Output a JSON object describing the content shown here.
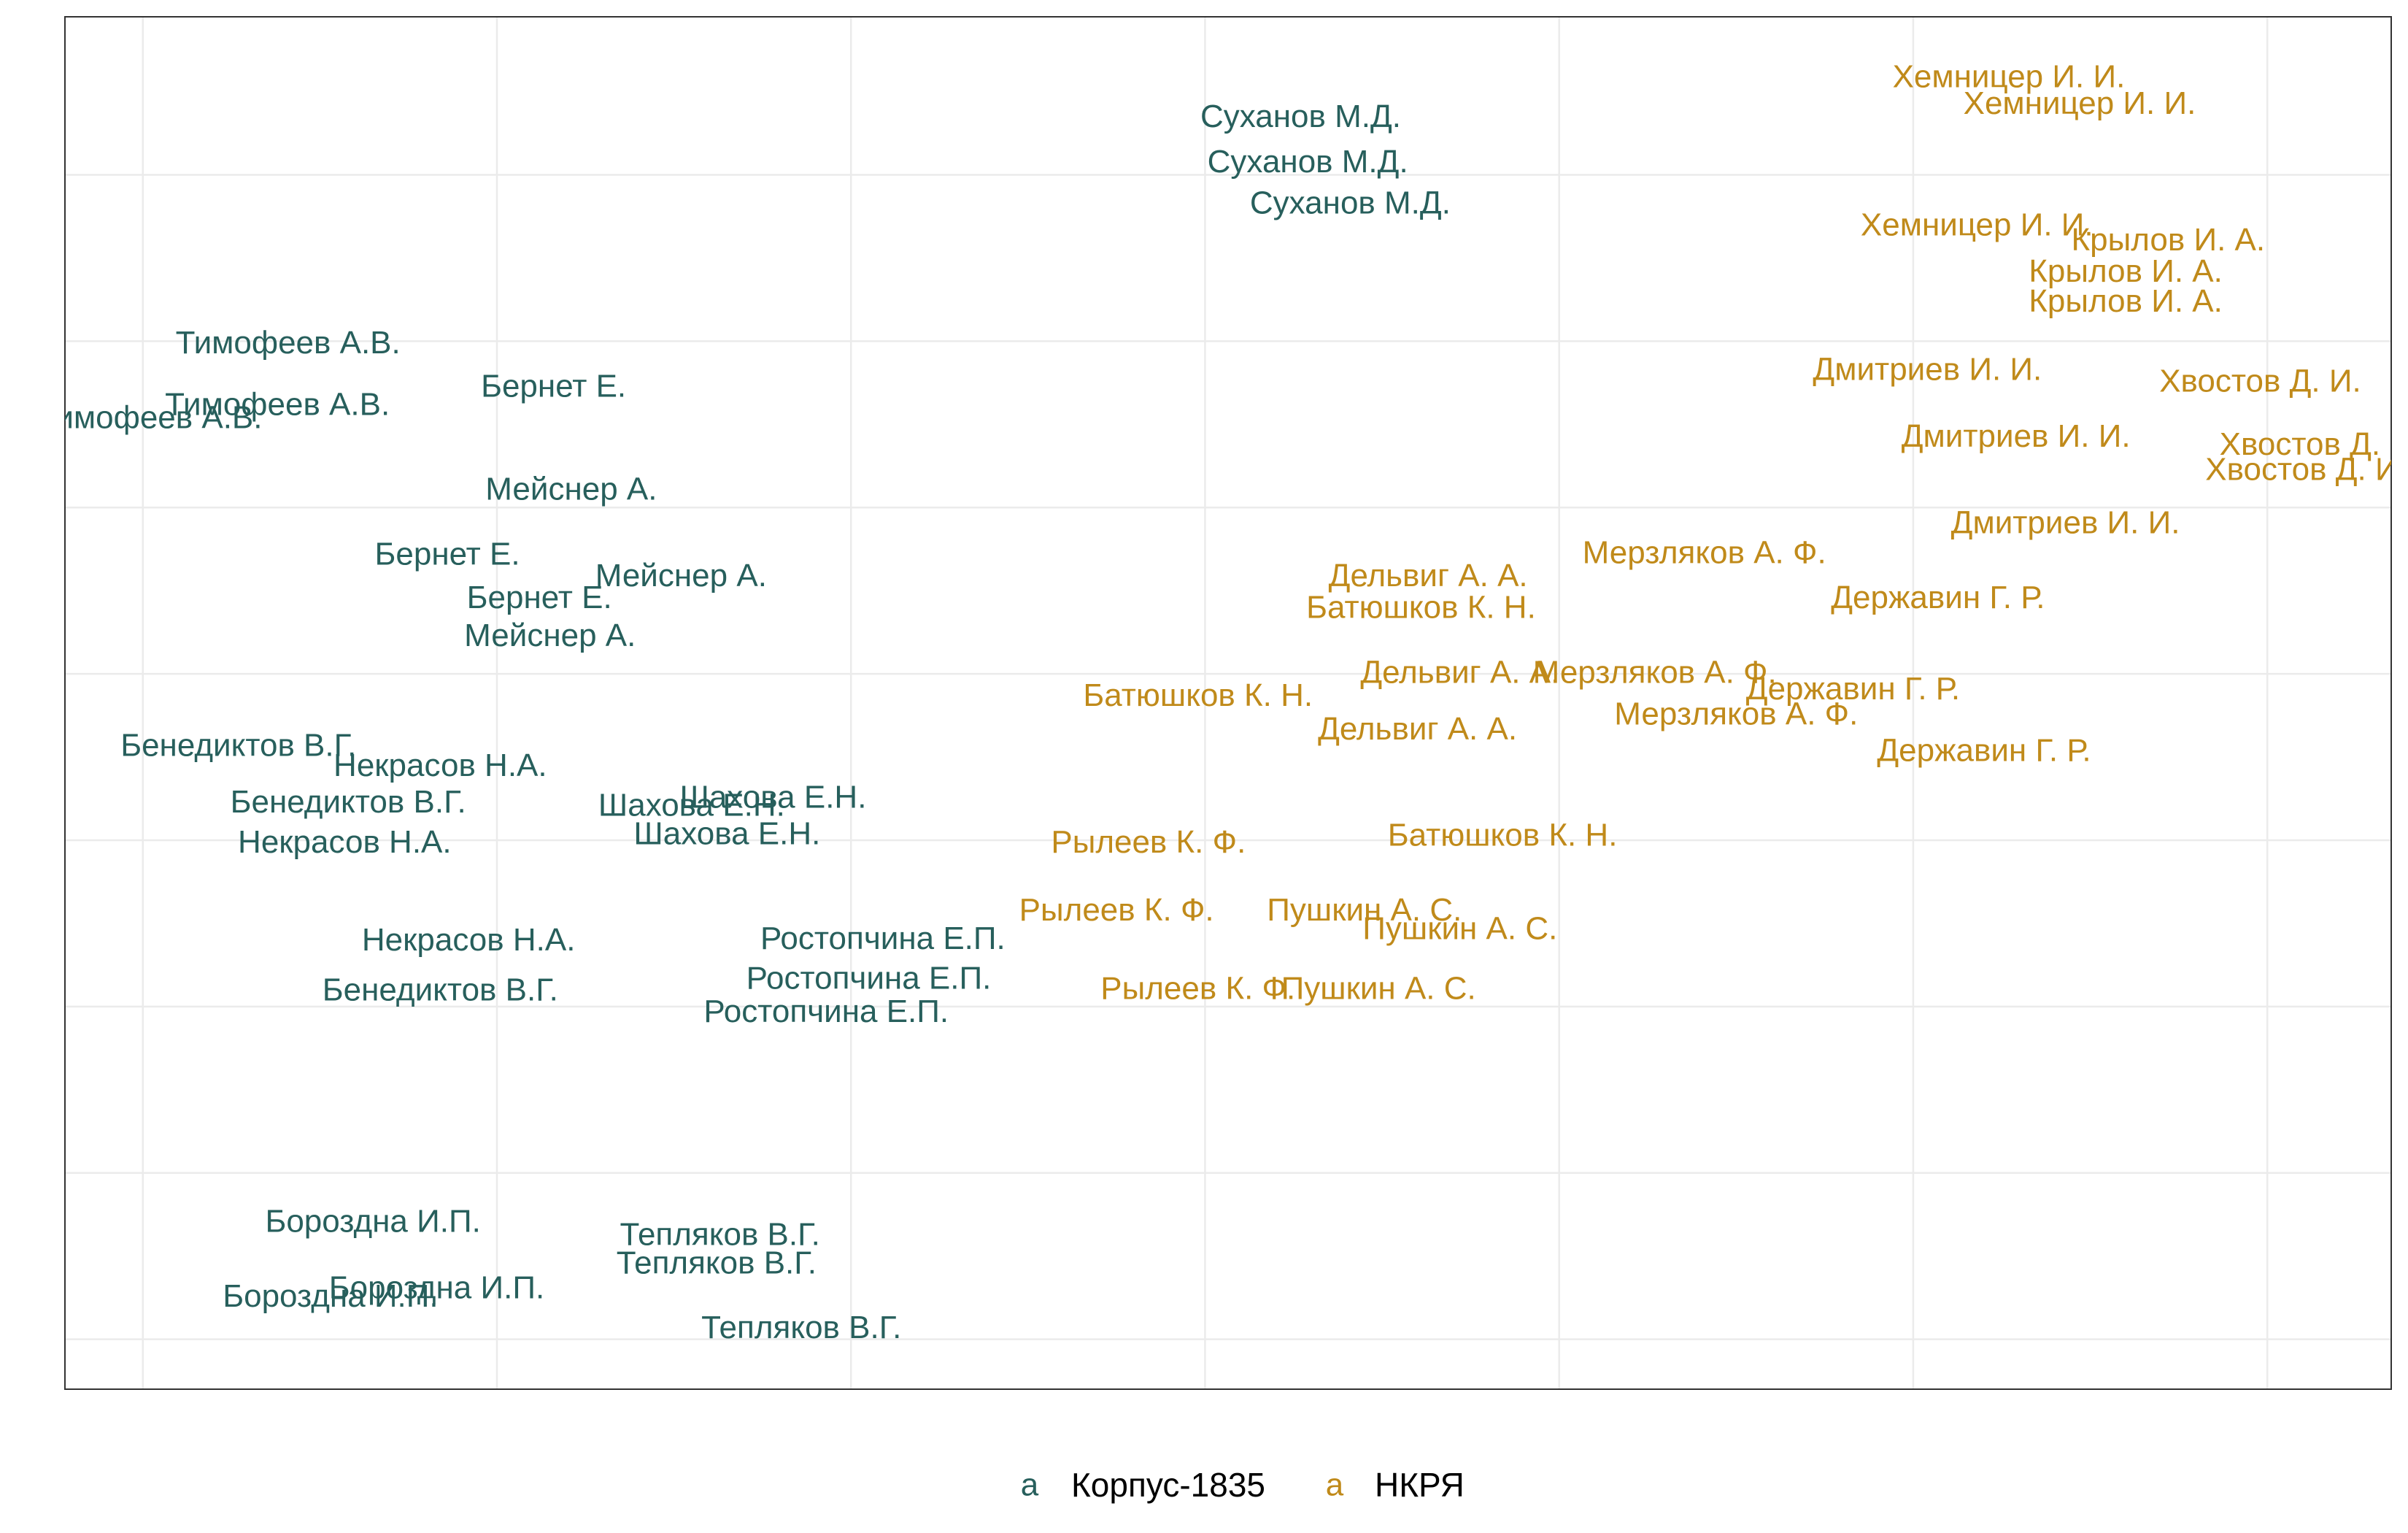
{
  "chart_data": {
    "type": "scatter",
    "title": "",
    "xlabel": "",
    "ylabel": "",
    "xlim": [
      -0.22,
      6.35
    ],
    "ylim": [
      -0.3,
      7.95
    ],
    "x_grid": [
      0,
      1,
      2,
      3,
      4,
      5,
      6
    ],
    "y_grid": [
      0,
      1,
      2,
      3,
      4,
      5,
      6,
      7
    ],
    "grid": true,
    "legend_position": "bottom",
    "legend_key_glyph": "a",
    "series": [
      {
        "name": "Корпус-1835",
        "color": "#275f5c",
        "points": [
          {
            "label": "Суханов М.Д.",
            "x": 3.27,
            "y": 7.35
          },
          {
            "label": "Суханов М.Д.",
            "x": 3.29,
            "y": 7.08
          },
          {
            "label": "Суханов М.Д.",
            "x": 3.41,
            "y": 6.83
          },
          {
            "label": "Тимофеев А.В.",
            "x": 0.41,
            "y": 5.99
          },
          {
            "label": "Тимофеев А.В.",
            "x": 0.38,
            "y": 5.62
          },
          {
            "label": "Тимофеев А.В.",
            "x": 0.02,
            "y": 5.54
          },
          {
            "label": "Бернет Е.",
            "x": 1.16,
            "y": 5.73
          },
          {
            "label": "Мейснер А.",
            "x": 1.21,
            "y": 5.11
          },
          {
            "label": "Мейснер А.",
            "x": 1.52,
            "y": 4.59
          },
          {
            "label": "Мейснер А.",
            "x": 1.15,
            "y": 4.23
          },
          {
            "label": "Бернет Е.",
            "x": 0.86,
            "y": 4.72
          },
          {
            "label": "Бернет Е.",
            "x": 1.12,
            "y": 4.46
          },
          {
            "label": "Бенедиктов В.Г.",
            "x": 0.27,
            "y": 3.57
          },
          {
            "label": "Бенедиктов В.Г.",
            "x": 0.58,
            "y": 3.23
          },
          {
            "label": "Бенедиктов В.Г.",
            "x": 0.84,
            "y": 2.1
          },
          {
            "label": "Некрасов Н.А.",
            "x": 0.84,
            "y": 3.45
          },
          {
            "label": "Некрасов Н.А.",
            "x": 0.57,
            "y": 2.99
          },
          {
            "label": "Некрасов Н.А.",
            "x": 0.92,
            "y": 2.4
          },
          {
            "label": "Шахова Е.Н.",
            "x": 1.78,
            "y": 3.26
          },
          {
            "label": "Шахова Е.Н.",
            "x": 1.55,
            "y": 3.21
          },
          {
            "label": "Шахова Е.Н.",
            "x": 1.65,
            "y": 3.04
          },
          {
            "label": "Ростопчина Е.П.",
            "x": 2.09,
            "y": 2.41
          },
          {
            "label": "Ростопчина Е.П.",
            "x": 2.05,
            "y": 2.17
          },
          {
            "label": "Ростопчина Е.П.",
            "x": 1.93,
            "y": 1.97
          },
          {
            "label": "Бороздна И.П.",
            "x": 0.65,
            "y": 0.71
          },
          {
            "label": "Бороздна И.П.",
            "x": 0.83,
            "y": 0.31
          },
          {
            "label": "Бороздна И.П.",
            "x": 0.53,
            "y": 0.26
          },
          {
            "label": "Тепляков В.Г.",
            "x": 1.63,
            "y": 0.63
          },
          {
            "label": "Тепляков В.Г.",
            "x": 1.62,
            "y": 0.46
          },
          {
            "label": "Тепляков В.Г.",
            "x": 1.86,
            "y": 0.07
          }
        ]
      },
      {
        "name": "НКРЯ",
        "color": "#c08a1a",
        "points": [
          {
            "label": "Хемницер И. И.",
            "x": 5.27,
            "y": 7.59
          },
          {
            "label": "Хемницер И. И.",
            "x": 5.47,
            "y": 7.43
          },
          {
            "label": "Хемницер И. И.",
            "x": 5.18,
            "y": 6.7
          },
          {
            "label": "Крылов И. А.",
            "x": 5.72,
            "y": 6.61
          },
          {
            "label": "Крылов И. А.",
            "x": 5.6,
            "y": 6.42
          },
          {
            "label": "Крылов И. А.",
            "x": 5.6,
            "y": 6.24
          },
          {
            "label": "Дмитриев И. И.",
            "x": 5.04,
            "y": 5.83
          },
          {
            "label": "Дмитриев И. И.",
            "x": 5.29,
            "y": 5.43
          },
          {
            "label": "Дмитриев И. И.",
            "x": 5.43,
            "y": 4.91
          },
          {
            "label": "Хвостов Д. И.",
            "x": 5.98,
            "y": 5.76
          },
          {
            "label": "Хвостов Д. И.",
            "x": 6.15,
            "y": 5.38
          },
          {
            "label": "Хвостов Д. И.",
            "x": 6.11,
            "y": 5.23
          },
          {
            "label": "Мерзляков А. Ф.",
            "x": 4.41,
            "y": 4.73
          },
          {
            "label": "Мерзляков А. Ф.",
            "x": 4.27,
            "y": 4.01
          },
          {
            "label": "Мерзляков А. Ф.",
            "x": 4.5,
            "y": 3.76
          },
          {
            "label": "Державин Г. Р.",
            "x": 5.07,
            "y": 4.46
          },
          {
            "label": "Державин Г. Р.",
            "x": 4.83,
            "y": 3.91
          },
          {
            "label": "Державин Г. Р.",
            "x": 5.2,
            "y": 3.54
          },
          {
            "label": "Дельвиг А. А.",
            "x": 3.63,
            "y": 4.59
          },
          {
            "label": "Дельвиг А. А.",
            "x": 3.72,
            "y": 4.01
          },
          {
            "label": "Дельвиг А. А.",
            "x": 3.6,
            "y": 3.67
          },
          {
            "label": "Батюшков К. Н.",
            "x": 3.61,
            "y": 4.4
          },
          {
            "label": "Батюшков К. Н.",
            "x": 2.98,
            "y": 3.87
          },
          {
            "label": "Батюшков К. Н.",
            "x": 3.84,
            "y": 3.03
          },
          {
            "label": "Рылеев К. Ф.",
            "x": 2.84,
            "y": 2.99
          },
          {
            "label": "Рылеев К. Ф.",
            "x": 2.75,
            "y": 2.58
          },
          {
            "label": "Рылеев К. Ф.",
            "x": 2.98,
            "y": 2.11
          },
          {
            "label": "Пушкин А. С.",
            "x": 3.45,
            "y": 2.58
          },
          {
            "label": "Пушкин А. С.",
            "x": 3.72,
            "y": 2.47
          },
          {
            "label": "Пушкин А. С.",
            "x": 3.49,
            "y": 2.11
          }
        ]
      }
    ]
  }
}
